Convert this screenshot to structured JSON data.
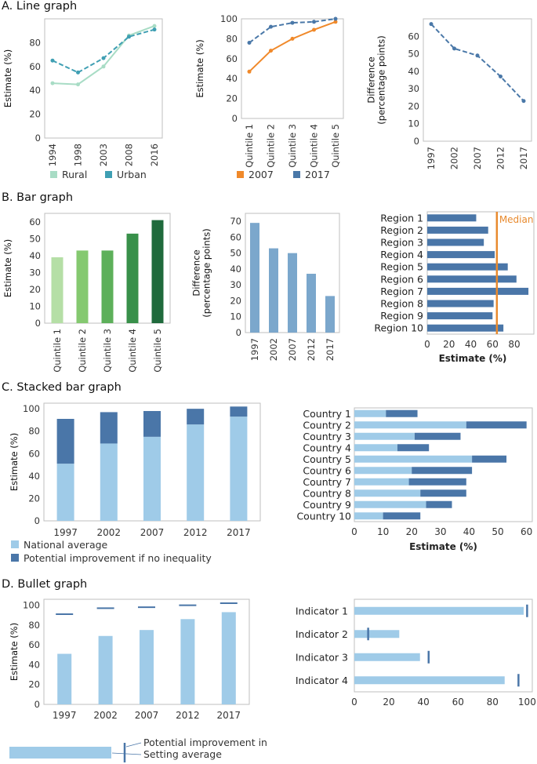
{
  "sections": {
    "a": "A. Line graph",
    "b": "B. Bar graph",
    "c": "C. Stacked bar graph",
    "d": "D. Bullet graph"
  },
  "colors": {
    "rural": "#a8dcc5",
    "urban": "#3f9fb3",
    "y2007": "#f0892a",
    "y2017": "#4a78a8",
    "bar_blue": "#7ba7cc",
    "region_bar": "#4a76a8",
    "median": "#e88a2e",
    "light_blue": "#9fcbe8",
    "dark_blue": "#4a76a8",
    "axis": "#bfbfbf",
    "quintile_greens": [
      "#b5dfa6",
      "#85c970",
      "#5db05a",
      "#38904a",
      "#1f6a3c"
    ]
  },
  "chart_data": [
    {
      "id": "a1",
      "type": "line",
      "categories": [
        "1994",
        "1998",
        "2003",
        "2008",
        "2016"
      ],
      "series": [
        {
          "name": "Rural",
          "values": [
            46,
            45,
            60,
            86,
            94
          ]
        },
        {
          "name": "Urban",
          "values": [
            65,
            55,
            67,
            85,
            91
          ]
        }
      ],
      "ylabel": "Estimate (%)",
      "yticks": [
        0,
        20,
        40,
        60,
        80
      ],
      "ylim": [
        0,
        100
      ],
      "legend": [
        "Rural",
        "Urban"
      ]
    },
    {
      "id": "a2",
      "type": "line",
      "categories": [
        "Quintile 1",
        "Quintile 2",
        "Quintile 3",
        "Quintile 4",
        "Quintile 5"
      ],
      "series": [
        {
          "name": "2007",
          "values": [
            47,
            68,
            80,
            89,
            97
          ]
        },
        {
          "name": "2017",
          "values": [
            76,
            92,
            96,
            97,
            100
          ]
        }
      ],
      "ylabel": "Estimate (%)",
      "yticks": [
        0,
        20,
        40,
        60,
        80,
        100
      ],
      "ylim": [
        0,
        100
      ],
      "legend": [
        "2007",
        "2017"
      ]
    },
    {
      "id": "a3",
      "type": "line",
      "categories": [
        "1997",
        "2002",
        "2007",
        "2012",
        "2017"
      ],
      "series": [
        {
          "name": "Difference",
          "values": [
            67,
            53,
            49,
            37,
            23
          ]
        }
      ],
      "ylabel": "Difference (percentage points)",
      "ylabel_lines": [
        "Difference",
        "(percentage points)"
      ],
      "yticks": [
        0,
        10,
        20,
        30,
        40,
        50,
        60
      ],
      "ylim": [
        0,
        70
      ]
    },
    {
      "id": "b1",
      "type": "bar",
      "categories": [
        "Quintile 1",
        "Quintile 2",
        "Quintile 3",
        "Quintile 4",
        "Quintile 5"
      ],
      "values": [
        39,
        43,
        43,
        53,
        61
      ],
      "ylabel": "Estimate (%)",
      "yticks": [
        0,
        10,
        20,
        30,
        40,
        50,
        60
      ],
      "ylim": [
        0,
        65
      ]
    },
    {
      "id": "b2",
      "type": "bar",
      "categories": [
        "1997",
        "2002",
        "2007",
        "2012",
        "2017"
      ],
      "values": [
        69,
        53,
        50,
        37,
        23
      ],
      "ylabel": "Difference (percentage points)",
      "ylabel_lines": [
        "Difference",
        "(percentage points)"
      ],
      "yticks": [
        0,
        10,
        20,
        30,
        40,
        50,
        60,
        70
      ],
      "ylim": [
        0,
        75
      ]
    },
    {
      "id": "b3",
      "type": "bar",
      "orientation": "horizontal",
      "categories": [
        "Region 1",
        "Region 2",
        "Region 3",
        "Region 4",
        "Region 5",
        "Region 6",
        "Region 7",
        "Region 8",
        "Region 9",
        "Region 10"
      ],
      "values": [
        45,
        56,
        52,
        62,
        74,
        82,
        93,
        61,
        60,
        70
      ],
      "median": 64,
      "median_label": "Median",
      "xlabel": "Estimate (%)",
      "xticks": [
        0,
        20,
        40,
        60,
        80
      ],
      "xlim": [
        0,
        98
      ]
    },
    {
      "id": "c1",
      "type": "bar",
      "stacked": true,
      "categories": [
        "1997",
        "2002",
        "2007",
        "2012",
        "2017"
      ],
      "series": [
        {
          "name": "National average",
          "values": [
            51,
            69,
            75,
            86,
            93
          ]
        },
        {
          "name": "Potential improvement if no inequality",
          "values": [
            40,
            28,
            23,
            14,
            9
          ]
        }
      ],
      "ylabel": "Estimate (%)",
      "yticks": [
        0,
        20,
        40,
        60,
        80,
        100
      ],
      "ylim": [
        0,
        105
      ],
      "legend": [
        "National average",
        "Potential improvement if no inequality"
      ]
    },
    {
      "id": "c2",
      "type": "bar",
      "orientation": "horizontal",
      "stacked": true,
      "categories": [
        "Country 1",
        "Country 2",
        "Country 3",
        "Country 4",
        "Country 5",
        "Country 6",
        "Country 7",
        "Country 8",
        "Country 9",
        "Country 10"
      ],
      "series": [
        {
          "name": "National average",
          "values": [
            11,
            39,
            21,
            15,
            41,
            20,
            19,
            23,
            25,
            10
          ]
        },
        {
          "name": "Potential improvement if no inequality",
          "values": [
            11,
            21,
            16,
            11,
            12,
            21,
            20,
            16,
            9,
            13
          ]
        }
      ],
      "xlabel": "Estimate (%)",
      "xticks": [
        0,
        10,
        20,
        30,
        40,
        50,
        60
      ],
      "xlim": [
        0,
        62
      ]
    },
    {
      "id": "d1",
      "type": "bar",
      "subtype": "bullet",
      "categories": [
        "1997",
        "2002",
        "2007",
        "2012",
        "2017"
      ],
      "values": [
        51,
        69,
        75,
        86,
        93
      ],
      "targets": [
        91,
        97,
        98,
        100,
        102
      ],
      "ylabel": "Estimate (%)",
      "yticks": [
        0,
        20,
        40,
        60,
        80,
        100
      ],
      "ylim": [
        0,
        106
      ]
    },
    {
      "id": "d2",
      "type": "bar",
      "subtype": "bullet",
      "orientation": "horizontal",
      "categories": [
        "Indicator 1",
        "Indicator 2",
        "Indicator 3",
        "Indicator 4"
      ],
      "values": [
        98,
        26,
        38,
        87
      ],
      "targets": [
        100,
        8,
        43,
        95
      ],
      "xlabel": "Estimate (%)",
      "xticks": [
        0,
        20,
        40,
        60,
        80,
        100
      ],
      "xlim": [
        0,
        103
      ]
    }
  ],
  "bullet_legend": {
    "target": "Potential improvement in setting average if no inequality",
    "bar": "Setting average"
  }
}
